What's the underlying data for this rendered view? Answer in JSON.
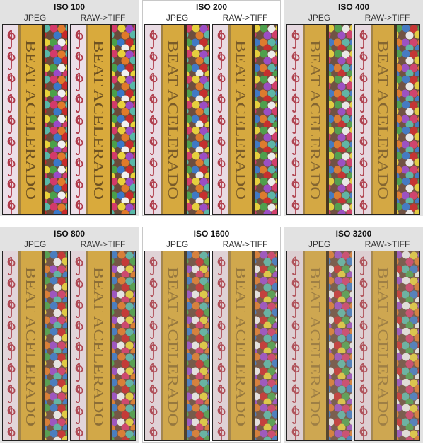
{
  "panels": [
    {
      "title": "ISO 100",
      "labels": [
        "JPEG",
        "RAW->TIFF"
      ]
    },
    {
      "title": "ISO 200",
      "labels": [
        "JPEG",
        "RAW->TIFF"
      ]
    },
    {
      "title": "ISO 400",
      "labels": [
        "JPEG",
        "RAW->TIFF"
      ]
    },
    {
      "title": "ISO 800",
      "labels": [
        "JPEG",
        "RAW->TIFF"
      ]
    },
    {
      "title": "ISO 1600",
      "labels": [
        "JPEG",
        "RAW->TIFF"
      ]
    },
    {
      "title": "ISO 3200",
      "labels": [
        "JPEG",
        "RAW->TIFF"
      ]
    }
  ],
  "crop_text": "BEAT ACELERADO"
}
